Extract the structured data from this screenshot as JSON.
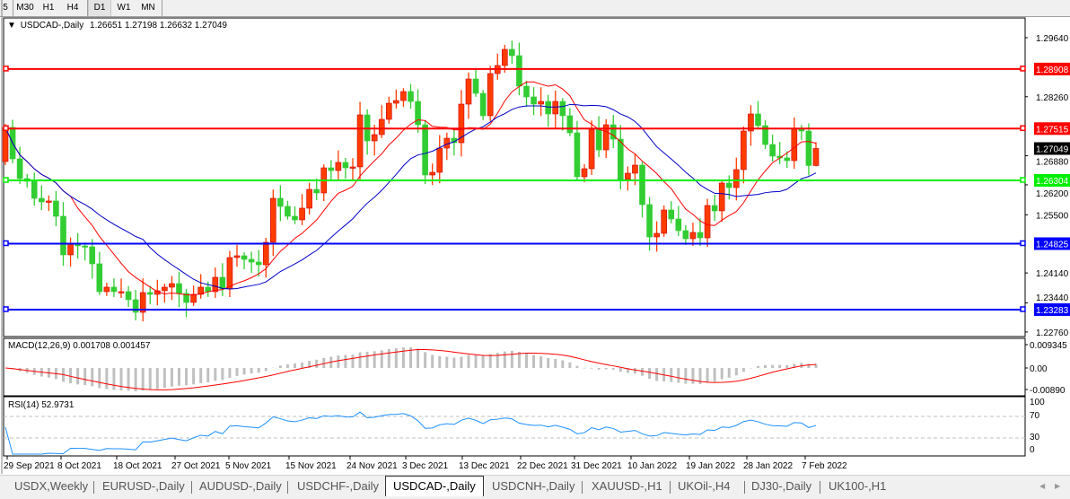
{
  "toolbar": {
    "timeframes": [
      {
        "label": "5",
        "active": false
      },
      {
        "label": "M30",
        "active": false
      },
      {
        "label": "H1",
        "active": false
      },
      {
        "label": "H4",
        "active": false
      },
      {
        "label": "D1",
        "active": true
      },
      {
        "label": "W1",
        "active": false
      },
      {
        "label": "MN",
        "active": false
      }
    ]
  },
  "chart": {
    "symbol_label": "USDCAD-,Daily",
    "ohlc_label": "1.26651 1.27198 1.26632 1.27049",
    "last_bar": {
      "open": 1.26651,
      "high": 1.27198,
      "low": 1.26632,
      "close": 1.27049
    },
    "first_open": 1.26745,
    "closes": [
      1.27542,
      1.26808,
      1.26346,
      1.26283,
      1.25885,
      1.25801,
      1.25822,
      1.25465,
      1.24563,
      1.24815,
      1.24773,
      1.24752,
      1.24353,
      1.23703,
      1.23808,
      1.23703,
      1.23703,
      1.23514,
      1.2322,
      1.23682,
      1.2364,
      1.23724,
      1.23808,
      1.23891,
      1.23661,
      1.23451,
      1.2364,
      1.23808,
      1.23703,
      1.24038,
      1.23766,
      1.245,
      1.24542,
      1.24458,
      1.24395,
      1.24332,
      1.24857,
      1.25885,
      1.25696,
      1.25465,
      1.25381,
      1.25654,
      1.26094,
      1.2601,
      1.26598,
      1.26535,
      1.26724,
      1.26598,
      1.26619,
      1.27836,
      1.27227,
      1.27374,
      1.27731,
      1.28108,
      1.28171,
      1.28381,
      1.2815,
      1.27605,
      1.2643,
      1.26493,
      1.27059,
      1.2729,
      1.27185,
      1.28087,
      1.28675,
      1.28339,
      1.27815,
      1.28801,
      1.2899,
      1.29367,
      1.2922,
      1.28507,
      1.28255,
      1.28087,
      1.2815,
      1.27857,
      1.2815,
      1.27815,
      1.27416,
      1.26388,
      1.26577,
      1.275,
      1.27017,
      1.27605,
      1.27269,
      1.26325,
      1.26472,
      1.26661,
      1.25738,
      1.24982,
      1.25066,
      1.25612,
      1.25402,
      1.25129,
      1.2494,
      1.25087,
      1.24961,
      1.25717,
      1.25591,
      1.26241,
      1.26136,
      1.26556,
      1.27458,
      1.27857,
      1.27584,
      1.27143,
      1.26871,
      1.26829,
      1.26766,
      1.27521,
      1.27458,
      1.26651,
      1.27049
    ],
    "colors": {
      "bull": "#ff3c00",
      "bear": "#32cd32",
      "ma_fast": "#ff0000",
      "ma_slow": "#0000c8"
    },
    "price_ticks": [
      "1.29640",
      "1.28260",
      "1.26880",
      "1.26200",
      "1.25500",
      "1.24140",
      "1.23440",
      "1.22760"
    ],
    "levels": [
      {
        "price": "1.28908",
        "color": "#ff0000"
      },
      {
        "price": "1.27515",
        "color": "#ff0000"
      },
      {
        "price": "1.26304",
        "color": "#00ee00"
      },
      {
        "price": "1.24825",
        "color": "#0000ff"
      },
      {
        "price": "1.23283",
        "color": "#0000ff"
      }
    ],
    "current_price": "1.27049",
    "dates": [
      "29 Sep 2021",
      "8 Oct 2021",
      "18 Oct 2021",
      "27 Oct 2021",
      "5 Nov 2021",
      "15 Nov 2021",
      "24 Nov 2021",
      "3 Dec 2021",
      "13 Dec 2021",
      "22 Dec 2021",
      "31 Dec 2021",
      "10 Jan 2022",
      "19 Jan 2022",
      "28 Jan 2022",
      "7 Feb 2022"
    ]
  },
  "macd": {
    "label": "MACD(12,26,9) 0.001708 0.001457",
    "ticks": [
      "0.009345",
      "0.00",
      "-0.00890"
    ]
  },
  "rsi": {
    "label": "RSI(14) 52.9731",
    "ticks": [
      "100",
      "70",
      "30",
      "0"
    ]
  },
  "tabs": [
    {
      "label": "USDX,Weekly",
      "active": false
    },
    {
      "label": "EURUSD-,Daily",
      "active": false
    },
    {
      "label": "AUDUSD-,Daily",
      "active": false
    },
    {
      "label": "USDCHF-,Daily",
      "active": false
    },
    {
      "label": "USDCAD-,Daily",
      "active": true
    },
    {
      "label": "USDCNH-,Daily",
      "active": false
    },
    {
      "label": "XAUUSD-,H1",
      "active": false
    },
    {
      "label": "UKOil-,H4",
      "active": false
    },
    {
      "label": "DJ30-,Daily",
      "active": false
    },
    {
      "label": "UK100-,H1",
      "active": false
    }
  ]
}
